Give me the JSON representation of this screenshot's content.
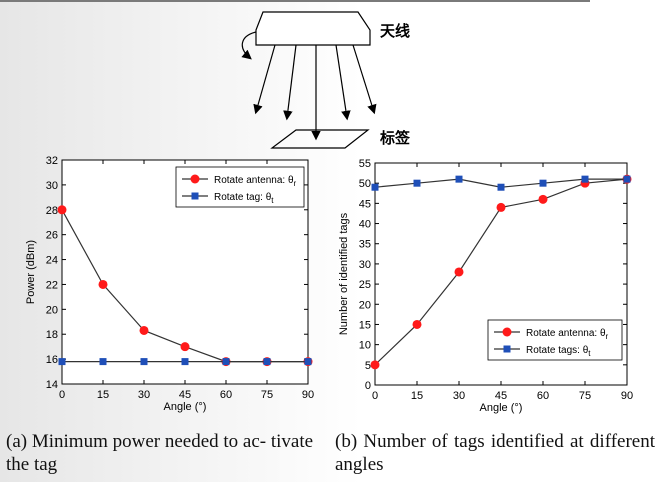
{
  "diagram": {
    "antenna_label": "天线",
    "tag_label": "标签"
  },
  "captions": {
    "a": "(a) Minimum power needed to ac- tivate the tag",
    "b": "(b) Number of tags identified at different angles"
  },
  "chart_data": [
    {
      "type": "line",
      "xlabel": "Angle (°)",
      "ylabel": "Power (dBm)",
      "x": [
        0,
        15,
        30,
        45,
        60,
        75,
        90
      ],
      "xlim": [
        0,
        90
      ],
      "ylim": [
        14,
        32
      ],
      "yticks": [
        14,
        16,
        18,
        20,
        22,
        24,
        26,
        28,
        30,
        32
      ],
      "legend_position": "top-right",
      "series": [
        {
          "name": "Rotate antenna: θr",
          "label_main": "Rotate antenna: θ",
          "label_sub": "r",
          "marker": "circle",
          "color": "#ff1a1a",
          "values": [
            28,
            22,
            18.3,
            17,
            15.8,
            15.8,
            15.8
          ]
        },
        {
          "name": "Rotate tag: θt",
          "label_main": "Rotate tag: θ",
          "label_sub": "t",
          "marker": "square",
          "color": "#1f4fb8",
          "values": [
            15.8,
            15.8,
            15.8,
            15.8,
            15.8,
            15.8,
            15.8
          ]
        }
      ]
    },
    {
      "type": "line",
      "xlabel": "Angle (°)",
      "ylabel": "Number of identified tags",
      "x": [
        0,
        15,
        30,
        45,
        60,
        75,
        90
      ],
      "xlim": [
        0,
        90
      ],
      "ylim": [
        0,
        55
      ],
      "yticks": [
        0,
        5,
        10,
        15,
        20,
        25,
        30,
        35,
        40,
        45,
        50,
        55
      ],
      "legend_position": "bottom-right",
      "series": [
        {
          "name": "Rotate antenna: θr",
          "label_main": "Rotate antenna: θ",
          "label_sub": "r",
          "marker": "circle",
          "color": "#ff1a1a",
          "values": [
            5,
            15,
            28,
            44,
            46,
            50,
            51
          ]
        },
        {
          "name": "Rotate tags: θt",
          "label_main": "Rotate tags: θ",
          "label_sub": "t",
          "marker": "square",
          "color": "#1f4fb8",
          "values": [
            49,
            50,
            51,
            49,
            50,
            51,
            51
          ]
        }
      ]
    }
  ]
}
